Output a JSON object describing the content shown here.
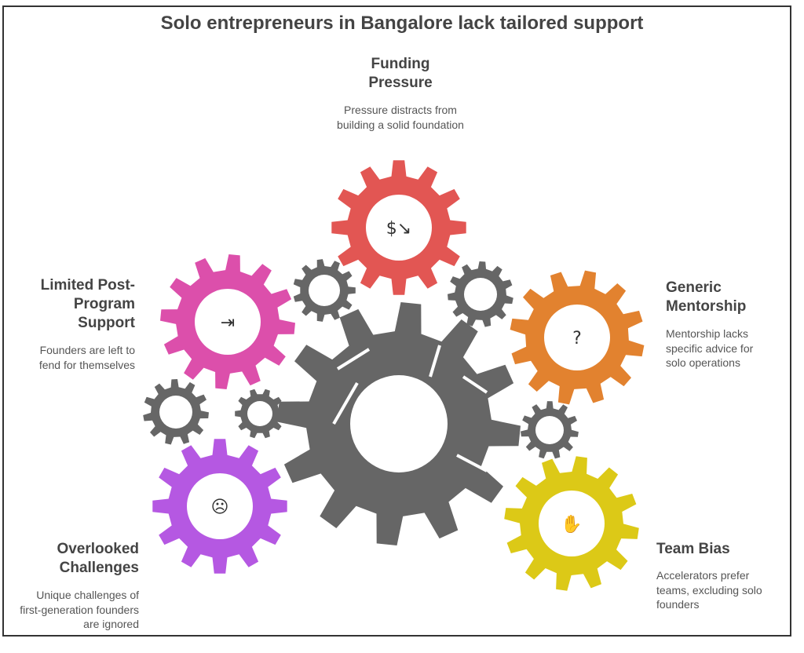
{
  "title": "Solo entrepreneurs in Bangalore lack tailored support",
  "colors": {
    "funding": "#E25653",
    "post_program": "#DC4FAB",
    "mentorship": "#E2822F",
    "challenges": "#B558E2",
    "team_bias": "#DCC917",
    "core": "#666666"
  },
  "items": [
    {
      "label": "Funding Pressure",
      "description": "Pressure distracts from building a solid foundation",
      "icon": "money-down-icon"
    },
    {
      "label": "Limited Post-Program Support",
      "description": "Founders are left to fend for themselves",
      "icon": "exit-door-icon"
    },
    {
      "label": "Generic Mentorship",
      "description": "Mentorship lacks specific advice for solo operations",
      "icon": "person-question-icon"
    },
    {
      "label": "Overlooked Challenges",
      "description": "Unique challenges of first-generation founders are ignored",
      "icon": "stressed-person-icon"
    },
    {
      "label": "Team Bias",
      "description": "Accelerators prefer teams, excluding solo founders",
      "icon": "high-five-icon"
    }
  ]
}
